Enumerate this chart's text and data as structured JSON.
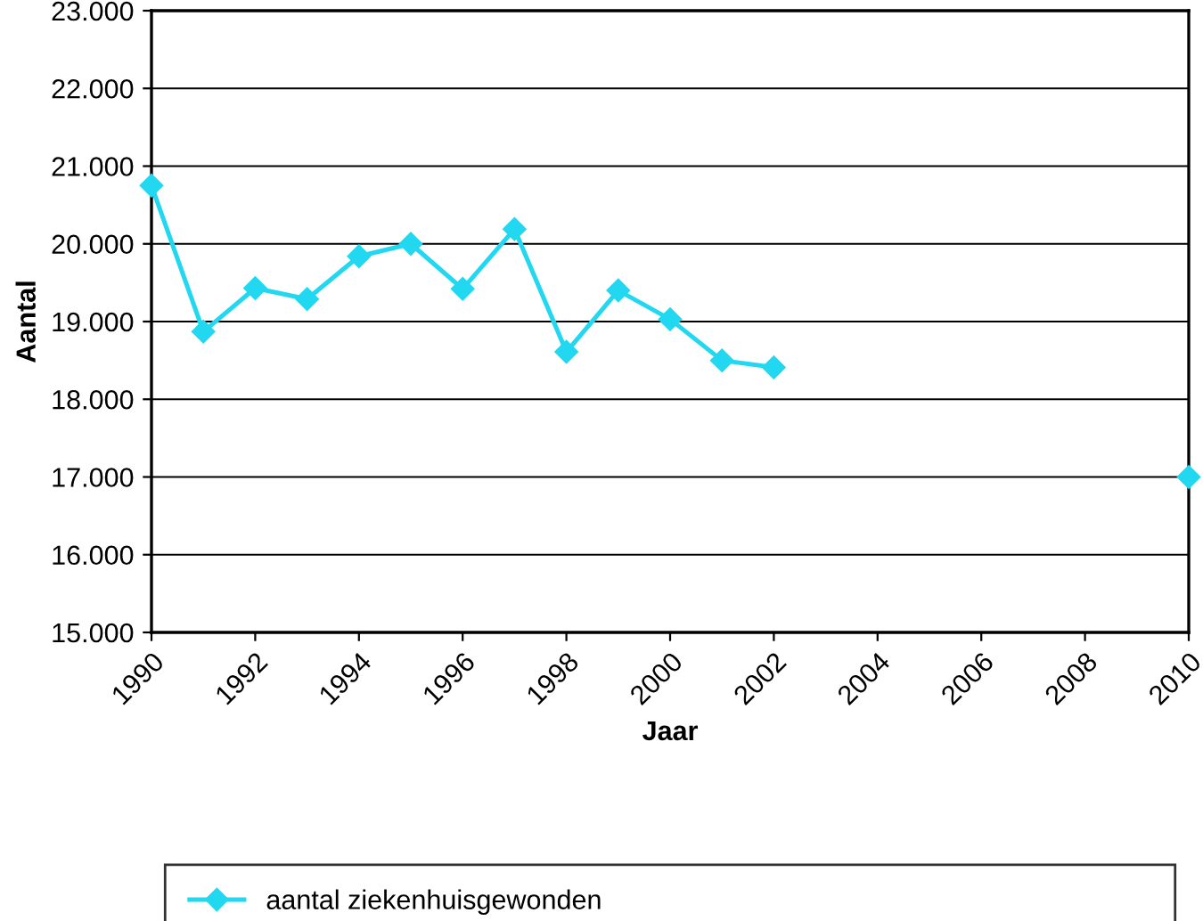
{
  "chart_data": {
    "type": "line",
    "xlabel": "Jaar",
    "ylabel": "Aantal",
    "x": [
      1990,
      1991,
      1992,
      1993,
      1994,
      1995,
      1996,
      1997,
      1998,
      1999,
      2000,
      2001,
      2002,
      2003,
      2004,
      2005,
      2006,
      2007,
      2008,
      2009,
      2010
    ],
    "series": [
      {
        "name": "aantal ziekenhuisgewonden",
        "color": "#22d8f0",
        "values": [
          20750,
          18870,
          19430,
          19290,
          19840,
          20000,
          19420,
          20190,
          18610,
          19400,
          19030,
          18500,
          18410,
          null,
          null,
          null,
          null,
          null,
          null,
          null,
          17000
        ]
      }
    ],
    "xlim": [
      1990,
      2010
    ],
    "xticks": [
      1990,
      1992,
      1994,
      1996,
      1998,
      2000,
      2002,
      2004,
      2006,
      2008,
      2010
    ],
    "ylim": [
      15000,
      23000
    ],
    "yticks": [
      {
        "value": 15000,
        "label": "15.000"
      },
      {
        "value": 16000,
        "label": "16.000"
      },
      {
        "value": 17000,
        "label": "17.000"
      },
      {
        "value": 18000,
        "label": "18.000"
      },
      {
        "value": 19000,
        "label": "19.000"
      },
      {
        "value": 20000,
        "label": "20.000"
      },
      {
        "value": 21000,
        "label": "21.000"
      },
      {
        "value": 22000,
        "label": "22.000"
      },
      {
        "value": 23000,
        "label": "23.000"
      }
    ],
    "grid": "y",
    "legend": "bottom",
    "marker": "diamond",
    "line_style": "solid"
  }
}
